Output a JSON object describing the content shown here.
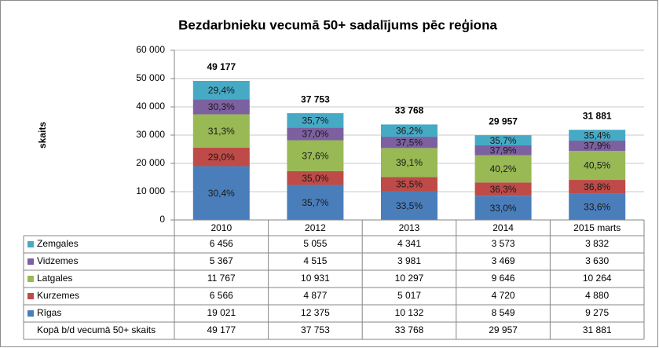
{
  "chart_data": {
    "type": "stacked_bar",
    "title": "Bezdarbnieku vecumā 50+ sadalījums pēc reģiona",
    "y_label": "skaits",
    "categories": [
      "2010",
      "2012",
      "2013",
      "2014",
      "2015 marts"
    ],
    "ylim": [
      0,
      60000
    ],
    "yticks": [
      0,
      {
        "value": 10000,
        "label": "10 000"
      },
      {
        "value": 20000,
        "label": "20 000"
      },
      {
        "value": 30000,
        "label": "30 000"
      },
      {
        "value": 40000,
        "label": "40 000"
      },
      {
        "value": 50000,
        "label": "50 000"
      },
      {
        "value": 60000,
        "label": "60 000"
      }
    ],
    "grid": true,
    "series": [
      {
        "name": "Rīgas",
        "color": "#4a7ebb",
        "values": [
          19021,
          12375,
          10132,
          8549,
          9275
        ],
        "value_labels": [
          "19 021",
          "12 375",
          "10 132",
          "8 549",
          "9 275"
        ],
        "shares": [
          30.4,
          35.7,
          33.5,
          33.0,
          33.6
        ],
        "share_labels": [
          "30,4%",
          "35,7%",
          "33,5%",
          "33,0%",
          "33,6%"
        ]
      },
      {
        "name": "Kurzemes",
        "color": "#be4b48",
        "values": [
          6566,
          4877,
          5017,
          4720,
          4880
        ],
        "value_labels": [
          "6 566",
          "4 877",
          "5 017",
          "4 720",
          "4 880"
        ],
        "shares": [
          29.0,
          35.0,
          35.5,
          36.3,
          36.8
        ],
        "share_labels": [
          "29,0%",
          "35,0%",
          "35,5%",
          "36,3%",
          "36,8%"
        ]
      },
      {
        "name": "Latgales",
        "color": "#98b954",
        "values": [
          11767,
          10931,
          10297,
          9646,
          10264
        ],
        "value_labels": [
          "11 767",
          "10 931",
          "10 297",
          "9 646",
          "10 264"
        ],
        "shares": [
          31.3,
          37.6,
          39.1,
          40.2,
          40.5
        ],
        "share_labels": [
          "31,3%",
          "37,6%",
          "39,1%",
          "40,2%",
          "40,5%"
        ]
      },
      {
        "name": "Vidzemes",
        "color": "#7d60a0",
        "values": [
          5367,
          4515,
          3981,
          3469,
          3630
        ],
        "value_labels": [
          "5 367",
          "4 515",
          "3 981",
          "3 469",
          "3 630"
        ],
        "shares": [
          30.3,
          37.0,
          37.5,
          37.9,
          37.9
        ],
        "share_labels": [
          "30,3%",
          "37,0%",
          "37,5%",
          "37,9%",
          "37,9%"
        ]
      },
      {
        "name": "Zemgales",
        "color": "#46aac5",
        "values": [
          6456,
          5055,
          4341,
          3573,
          3832
        ],
        "value_labels": [
          "6 456",
          "5 055",
          "4 341",
          "3 573",
          "3 832"
        ],
        "shares": [
          29.4,
          35.7,
          36.2,
          35.7,
          35.4
        ],
        "share_labels": [
          "29,4%",
          "35,7%",
          "36,2%",
          "35,7%",
          "35,4%"
        ]
      }
    ],
    "totals": {
      "name": "Kopā b/d vecumā 50+ skaits",
      "values": [
        49177,
        37753,
        33768,
        29957,
        31881
      ],
      "value_labels": [
        "49 177",
        "37 753",
        "33 768",
        "29 957",
        "31 881"
      ]
    }
  }
}
